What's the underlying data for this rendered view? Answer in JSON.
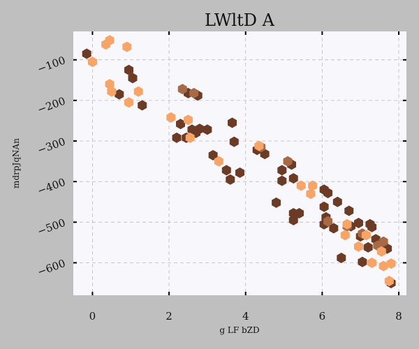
{
  "chart_data": {
    "type": "scatter",
    "title": "LWltD A",
    "xlabel": "g LF  bZD",
    "ylabel": "mdrpJqNAn",
    "xlim": [
      -0.5,
      8.2
    ],
    "ylim": [
      -680,
      -30
    ],
    "xticks": [
      0,
      2,
      4,
      6,
      8
    ],
    "yticks": [
      -100,
      -200,
      -300,
      -400,
      -500,
      -600
    ],
    "grid": true,
    "marker": "hexagon",
    "series": [
      {
        "color": "#6b3b25",
        "points": [
          [
            -0.15,
            -85
          ],
          [
            0.7,
            -185
          ],
          [
            1.05,
            -145
          ],
          [
            1.3,
            -212
          ],
          [
            0.95,
            -125
          ],
          [
            2.3,
            -258
          ],
          [
            2.2,
            -292
          ],
          [
            2.5,
            -182
          ],
          [
            2.75,
            -188
          ],
          [
            2.45,
            -292
          ],
          [
            2.6,
            -272
          ],
          [
            2.7,
            -280
          ],
          [
            2.8,
            -270
          ],
          [
            3.0,
            -272
          ],
          [
            3.15,
            -335
          ],
          [
            3.5,
            -372
          ],
          [
            3.65,
            -255
          ],
          [
            3.7,
            -302
          ],
          [
            3.6,
            -395
          ],
          [
            3.85,
            -378
          ],
          [
            4.3,
            -322
          ],
          [
            4.5,
            -332
          ],
          [
            4.8,
            -452
          ],
          [
            4.95,
            -372
          ],
          [
            4.95,
            -398
          ],
          [
            5.2,
            -358
          ],
          [
            5.25,
            -392
          ],
          [
            5.25,
            -478
          ],
          [
            5.25,
            -495
          ],
          [
            5.4,
            -478
          ],
          [
            6.05,
            -420
          ],
          [
            6.15,
            -428
          ],
          [
            6.05,
            -462
          ],
          [
            6.1,
            -488
          ],
          [
            6.05,
            -505
          ],
          [
            6.3,
            -515
          ],
          [
            6.4,
            -450
          ],
          [
            6.5,
            -588
          ],
          [
            6.7,
            -472
          ],
          [
            6.75,
            -510
          ],
          [
            6.95,
            -502
          ],
          [
            7.0,
            -535
          ],
          [
            7.05,
            -598
          ],
          [
            7.25,
            -505
          ],
          [
            7.3,
            -512
          ],
          [
            7.4,
            -542
          ],
          [
            7.2,
            -562
          ],
          [
            7.6,
            -555
          ],
          [
            7.7,
            -565
          ],
          [
            7.8,
            -650
          ]
        ]
      },
      {
        "color": "#a86a45",
        "points": [
          [
            2.35,
            -172
          ],
          [
            2.65,
            -182
          ],
          [
            4.4,
            -315
          ],
          [
            5.1,
            -350
          ],
          [
            6.15,
            -498
          ],
          [
            6.65,
            -510
          ],
          [
            7.05,
            -528
          ],
          [
            7.45,
            -558
          ],
          [
            7.6,
            -548
          ]
        ]
      },
      {
        "color": "#f6a467",
        "points": [
          [
            0.0,
            -105
          ],
          [
            0.35,
            -62
          ],
          [
            0.45,
            -52
          ],
          [
            0.45,
            -160
          ],
          [
            0.5,
            -178
          ],
          [
            0.9,
            -68
          ],
          [
            0.95,
            -205
          ],
          [
            1.2,
            -178
          ],
          [
            2.05,
            -242
          ],
          [
            2.5,
            -248
          ],
          [
            2.55,
            -292
          ],
          [
            3.3,
            -350
          ],
          [
            4.35,
            -312
          ],
          [
            5.45,
            -410
          ],
          [
            5.7,
            -430
          ],
          [
            5.75,
            -410
          ],
          [
            6.6,
            -532
          ],
          [
            6.65,
            -505
          ],
          [
            6.95,
            -560
          ],
          [
            7.15,
            -532
          ],
          [
            7.3,
            -600
          ],
          [
            7.55,
            -572
          ],
          [
            7.6,
            -608
          ],
          [
            7.75,
            -645
          ],
          [
            7.8,
            -602
          ]
        ]
      }
    ]
  }
}
